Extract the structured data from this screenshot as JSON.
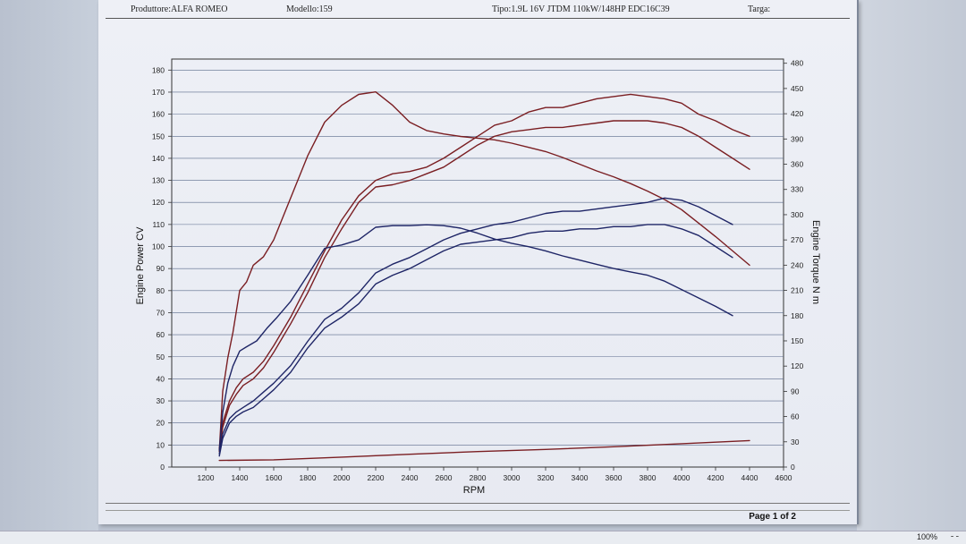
{
  "header": {
    "producer": "Produttore:ALFA ROMEO",
    "model": "Modello:159",
    "type": "Tipo:1.9L 16V JTDM 110kW/148HP EDC16C39",
    "plate": "Targa:"
  },
  "footer": {
    "page_label": "Page 1 of 2"
  },
  "status": {
    "zoom": "100%",
    "zoom_control": "- -"
  },
  "colors": {
    "power": "#7a1e22",
    "torque": "#1e2566",
    "grid": "#5a6a8a"
  },
  "chart_data": {
    "type": "line",
    "xlabel": "RPM",
    "ylabel": "Engine Power CV",
    "ylabel_right": "Engine Torque N m",
    "xlim": [
      1000,
      4600
    ],
    "ylim": [
      0,
      185
    ],
    "ylim_right": [
      0,
      485
    ],
    "x_ticks": [
      1200,
      1400,
      1600,
      1800,
      2000,
      2200,
      2400,
      2600,
      2800,
      3000,
      3200,
      3400,
      3600,
      3800,
      4000,
      4200,
      4400,
      4600
    ],
    "y_ticks": [
      0,
      10,
      20,
      30,
      40,
      50,
      60,
      70,
      80,
      90,
      100,
      110,
      120,
      130,
      140,
      150,
      160,
      170,
      180
    ],
    "y_ticks_right": [
      0,
      30,
      60,
      90,
      120,
      150,
      180,
      210,
      240,
      270,
      300,
      330,
      360,
      390,
      420,
      450,
      480
    ],
    "grid": true,
    "series": [
      {
        "axis": "right",
        "color": "#7a1e22",
        "x": [
          1280,
          1300,
          1330,
          1360,
          1400,
          1440,
          1480,
          1540,
          1600,
          1700,
          1800,
          1900,
          2000,
          2100,
          2200,
          2300,
          2400,
          2500,
          2600,
          2700,
          2800,
          2900,
          3000,
          3100,
          3200,
          3300,
          3400,
          3500,
          3600,
          3700,
          3800,
          3900,
          4000,
          4100,
          4200,
          4300,
          4400
        ],
        "y": [
          20,
          90,
          130,
          160,
          210,
          220,
          240,
          250,
          270,
          320,
          370,
          410,
          430,
          443,
          446,
          430,
          410,
          400,
          396,
          393,
          391,
          389,
          385,
          380,
          375,
          368,
          360,
          352,
          345,
          337,
          328,
          318,
          306,
          290,
          274,
          257,
          240
        ]
      },
      {
        "axis": "left",
        "color": "#7a1e22",
        "x": [
          1280,
          1300,
          1340,
          1380,
          1420,
          1480,
          1540,
          1600,
          1700,
          1800,
          1900,
          2000,
          2100,
          2200,
          2300,
          2400,
          2500,
          2600,
          2700,
          2800,
          2900,
          3000,
          3100,
          3200,
          3300,
          3400,
          3500,
          3600,
          3700,
          3800,
          3900,
          4000,
          4100,
          4200,
          4300,
          4400
        ],
        "y": [
          8,
          20,
          30,
          36,
          40,
          43,
          48,
          55,
          68,
          83,
          98,
          112,
          123,
          130,
          133,
          134,
          136,
          140,
          145,
          150,
          155,
          157,
          161,
          163,
          163,
          165,
          167,
          168,
          169,
          168,
          167,
          165,
          160,
          157,
          153,
          150
        ]
      },
      {
        "axis": "left",
        "color": "#7a1e22",
        "x": [
          1280,
          1300,
          1340,
          1380,
          1420,
          1480,
          1540,
          1600,
          1700,
          1800,
          1900,
          2000,
          2100,
          2200,
          2300,
          2400,
          2500,
          2600,
          2700,
          2800,
          2900,
          3000,
          3100,
          3200,
          3300,
          3400,
          3500,
          3600,
          3700,
          3800,
          3900,
          4000,
          4100,
          4200,
          4300,
          4400
        ],
        "y": [
          7,
          18,
          28,
          33,
          37,
          40,
          45,
          52,
          65,
          79,
          95,
          108,
          120,
          127,
          128,
          130,
          133,
          136,
          141,
          146,
          150,
          152,
          153,
          154,
          154,
          155,
          156,
          157,
          157,
          157,
          156,
          154,
          150,
          145,
          140,
          135
        ]
      },
      {
        "axis": "right",
        "color": "#1e2566",
        "x": [
          1280,
          1300,
          1330,
          1360,
          1400,
          1440,
          1500,
          1560,
          1620,
          1700,
          1800,
          1900,
          2000,
          2100,
          2200,
          2300,
          2400,
          2500,
          2600,
          2700,
          2800,
          2900,
          3000,
          3100,
          3200,
          3300,
          3400,
          3500,
          3600,
          3700,
          3800,
          3900,
          4000,
          4100,
          4200,
          4300
        ],
        "y": [
          20,
          65,
          100,
          120,
          138,
          143,
          150,
          165,
          178,
          197,
          228,
          260,
          264,
          270,
          285,
          287,
          287,
          288,
          287,
          284,
          278,
          271,
          266,
          262,
          257,
          251,
          246,
          241,
          236,
          232,
          228,
          221,
          211,
          201,
          191,
          180
        ]
      },
      {
        "axis": "left",
        "color": "#1e2566",
        "x": [
          1280,
          1300,
          1340,
          1380,
          1420,
          1480,
          1540,
          1600,
          1700,
          1800,
          1900,
          2000,
          2100,
          2200,
          2300,
          2400,
          2500,
          2600,
          2700,
          2800,
          2900,
          3000,
          3100,
          3200,
          3300,
          3400,
          3500,
          3600,
          3700,
          3800,
          3900,
          4000,
          4100,
          4200,
          4300
        ],
        "y": [
          6,
          15,
          22,
          25,
          27,
          30,
          34,
          38,
          46,
          57,
          67,
          72,
          79,
          88,
          92,
          95,
          99,
          103,
          106,
          108,
          110,
          111,
          113,
          115,
          116,
          116,
          117,
          118,
          119,
          120,
          122,
          121,
          118,
          114,
          110
        ]
      },
      {
        "axis": "left",
        "color": "#1e2566",
        "x": [
          1280,
          1300,
          1340,
          1380,
          1420,
          1480,
          1540,
          1600,
          1700,
          1800,
          1900,
          2000,
          2100,
          2200,
          2300,
          2400,
          2500,
          2600,
          2700,
          2800,
          2900,
          3000,
          3100,
          3200,
          3300,
          3400,
          3500,
          3600,
          3700,
          3800,
          3900,
          4000,
          4100,
          4200,
          4300
        ],
        "y": [
          5,
          13,
          20,
          23,
          25,
          27,
          31,
          35,
          43,
          54,
          63,
          68,
          74,
          83,
          87,
          90,
          94,
          98,
          101,
          102,
          103,
          104,
          106,
          107,
          107,
          108,
          108,
          109,
          109,
          110,
          110,
          108,
          105,
          100,
          95
        ]
      },
      {
        "axis": "left",
        "color": "#7a1e22",
        "x": [
          1280,
          1600,
          2000,
          2400,
          2800,
          3200,
          3600,
          4000,
          4400
        ],
        "y": [
          3,
          3.3,
          4.5,
          5.8,
          7,
          8,
          9.2,
          10.6,
          12
        ]
      }
    ]
  }
}
